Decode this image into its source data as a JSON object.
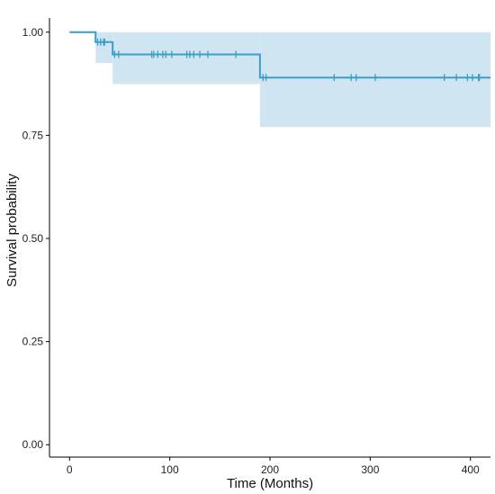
{
  "chart_data": {
    "type": "line",
    "subtype": "kaplan-meier",
    "title": "",
    "xlabel": "Time (Months)",
    "ylabel": "Survival probability",
    "xlim": [
      -20,
      420
    ],
    "ylim": [
      -0.03,
      1.03
    ],
    "x_ticks": [
      0,
      100,
      200,
      300,
      400
    ],
    "y_ticks": [
      0.0,
      0.25,
      0.5,
      0.75,
      1.0
    ],
    "y_tick_labels": [
      "0.00",
      "0.25",
      "0.50",
      "0.75",
      "1.00"
    ],
    "grid": false,
    "legend": "none",
    "colors": {
      "line": "#3b9ec4",
      "band": "#cfe6f2",
      "axis": "#000000"
    },
    "series": [
      {
        "survival_steps": [
          {
            "x": 0,
            "y": 1.0
          },
          {
            "x": 26,
            "y": 0.976
          },
          {
            "x": 43,
            "y": 0.946
          },
          {
            "x": 190,
            "y": 0.89
          }
        ],
        "end_x": 420,
        "ci_steps": [
          {
            "x": 26,
            "lower": 0.925,
            "upper": 1.0
          },
          {
            "x": 43,
            "lower": 0.874,
            "upper": 1.0
          },
          {
            "x": 190,
            "lower": 0.77,
            "upper": 1.0
          }
        ],
        "censor_times": [
          28,
          31,
          34,
          35,
          45,
          49,
          82,
          84,
          88,
          93,
          96,
          102,
          117,
          120,
          124,
          130,
          138,
          166,
          193,
          196,
          264,
          281,
          286,
          305,
          374,
          386,
          397,
          402,
          408,
          409
        ]
      }
    ]
  }
}
